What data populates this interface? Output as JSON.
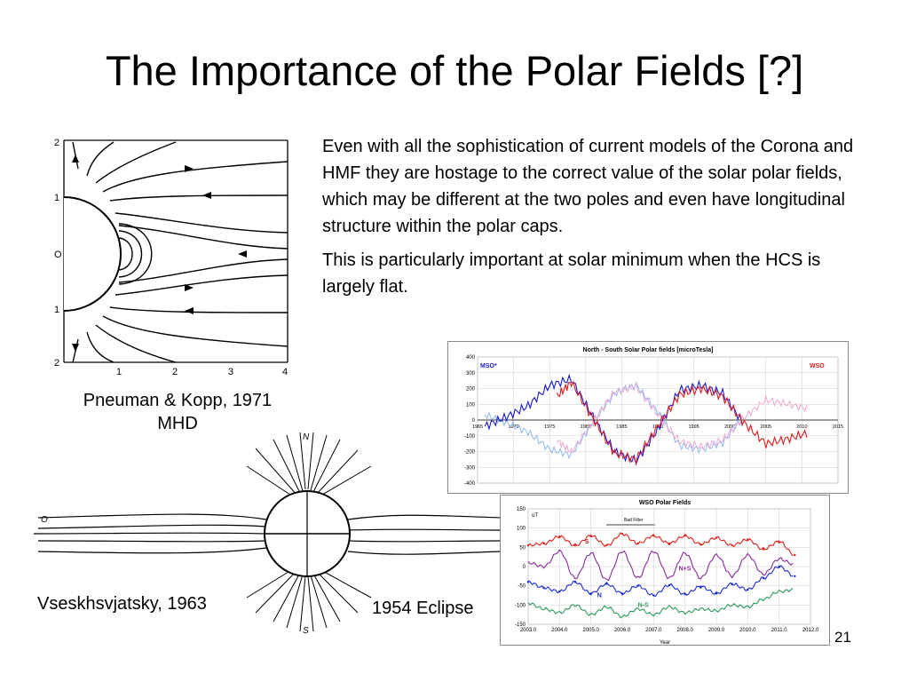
{
  "slide": {
    "title": "The Importance of the Polar Fields [?]",
    "paragraphs": [
      "Even with all the sophistication of current models of the Corona and HMF they are hostage to the correct value of the solar polar fields, which may be different at the two poles and even have longitudinal structure within the polar caps.",
      "This is particularly important at solar minimum when the HCS is largely flat."
    ],
    "captions": {
      "pneuman_line1": "Pneuman & Kopp, 1971",
      "pneuman_line2": "MHD",
      "vseskh": "Vseskhsvjatsky, 1963",
      "eclipse": "1954 Eclipse"
    },
    "slide_number": "21"
  },
  "pneuman_figure": {
    "y_ticks": [
      "2",
      "1",
      "O",
      "1",
      "2"
    ],
    "x_ticks": [
      "1",
      "2",
      "3",
      "4"
    ]
  },
  "eclipse_figure": {
    "labels": {
      "north": "N",
      "south": "S",
      "left_end": "O"
    }
  },
  "chart_data": [
    {
      "type": "line",
      "title": "North - South Solar Polar fields [microTesla]",
      "ylim": [
        -400,
        400
      ],
      "y_ticks": [
        "400",
        "300",
        "200",
        "100",
        "0",
        "-100",
        "-200",
        "-300",
        "-400"
      ],
      "x_ticks": [
        "1965",
        "1970",
        "1975",
        "1980",
        "1985",
        "1990",
        "1995",
        "2000",
        "2005",
        "2010",
        "2015"
      ],
      "legend_left": "MSO*",
      "legend_right": "WSO",
      "colors": {
        "mso": "#1a1ad6",
        "mso_light": "#8fb8f0",
        "wso": "#e01a1a",
        "wso_light": "#f0a6cf"
      },
      "series": [
        {
          "name": "MSO*",
          "x": [
            1966,
            1969,
            1972,
            1975,
            1978,
            1981,
            1984,
            1987,
            1990,
            1993,
            1996,
            1999,
            2002
          ],
          "values": [
            -40,
            20,
            90,
            220,
            260,
            20,
            -200,
            -260,
            -60,
            190,
            220,
            170,
            -30
          ]
        },
        {
          "name": "WSO",
          "x": [
            1976,
            1978,
            1981,
            1984,
            1987,
            1990,
            1993,
            1996,
            1999,
            2002,
            2005,
            2008,
            2011
          ],
          "values": [
            150,
            240,
            10,
            -210,
            -250,
            -40,
            160,
            200,
            150,
            -20,
            -150,
            -120,
            -80
          ]
        }
      ]
    },
    {
      "type": "line",
      "title": "WSO Polar Fields",
      "unit": "uT",
      "xlabel": "Year",
      "annotation": "Bad Filter",
      "ylim": [
        -150,
        150
      ],
      "y_ticks": [
        "150",
        "100",
        "50",
        "0",
        "-50",
        "-100",
        "-150"
      ],
      "x_ticks": [
        "2003.0",
        "2004.0",
        "2005.0",
        "2006.0",
        "2007.0",
        "2008.0",
        "2009.0",
        "2010.0",
        "2011.0",
        "2012.0"
      ],
      "colors": {
        "S": "#e0201a",
        "N": "#1a2ad6",
        "N+S": "#8a2aa0",
        "N-S": "#2a9a5a"
      },
      "series": [
        {
          "name": "S",
          "x": [
            2003.0,
            2003.5,
            2004.0,
            2004.5,
            2005.0,
            2005.5,
            2006.0,
            2006.5,
            2007.0,
            2007.5,
            2008.0,
            2008.5,
            2009.0,
            2009.5,
            2010.0,
            2010.5,
            2011.0,
            2011.5
          ],
          "values": [
            55,
            60,
            78,
            55,
            80,
            55,
            85,
            60,
            80,
            60,
            80,
            58,
            75,
            55,
            70,
            45,
            65,
            30
          ]
        },
        {
          "name": "N",
          "x": [
            2003.0,
            2003.5,
            2004.0,
            2004.5,
            2005.0,
            2005.5,
            2006.0,
            2006.5,
            2007.0,
            2007.5,
            2008.0,
            2008.5,
            2009.0,
            2009.5,
            2010.0,
            2010.5,
            2011.0,
            2011.5
          ],
          "values": [
            -40,
            -55,
            -65,
            -40,
            -70,
            -45,
            -70,
            -50,
            -75,
            -48,
            -72,
            -52,
            -70,
            -45,
            -60,
            -30,
            0,
            -25
          ]
        },
        {
          "name": "N+S",
          "x": [
            2003.0,
            2003.5,
            2004.0,
            2004.5,
            2005.0,
            2005.5,
            2006.0,
            2006.5,
            2007.0,
            2007.5,
            2008.0,
            2008.5,
            2009.0,
            2009.5,
            2010.0,
            2010.5,
            2011.0,
            2011.5
          ],
          "values": [
            10,
            0,
            40,
            -30,
            35,
            -35,
            40,
            -30,
            40,
            -30,
            35,
            -30,
            30,
            -25,
            30,
            -20,
            20,
            5
          ]
        },
        {
          "name": "N-S",
          "x": [
            2003.0,
            2003.5,
            2004.0,
            2004.5,
            2005.0,
            2005.5,
            2006.0,
            2006.5,
            2007.0,
            2007.5,
            2008.0,
            2008.5,
            2009.0,
            2009.5,
            2010.0,
            2010.5,
            2011.0,
            2011.5
          ],
          "values": [
            -95,
            -110,
            -120,
            -100,
            -125,
            -105,
            -130,
            -110,
            -125,
            -105,
            -120,
            -110,
            -115,
            -100,
            -105,
            -85,
            -65,
            -60
          ]
        }
      ]
    }
  ]
}
